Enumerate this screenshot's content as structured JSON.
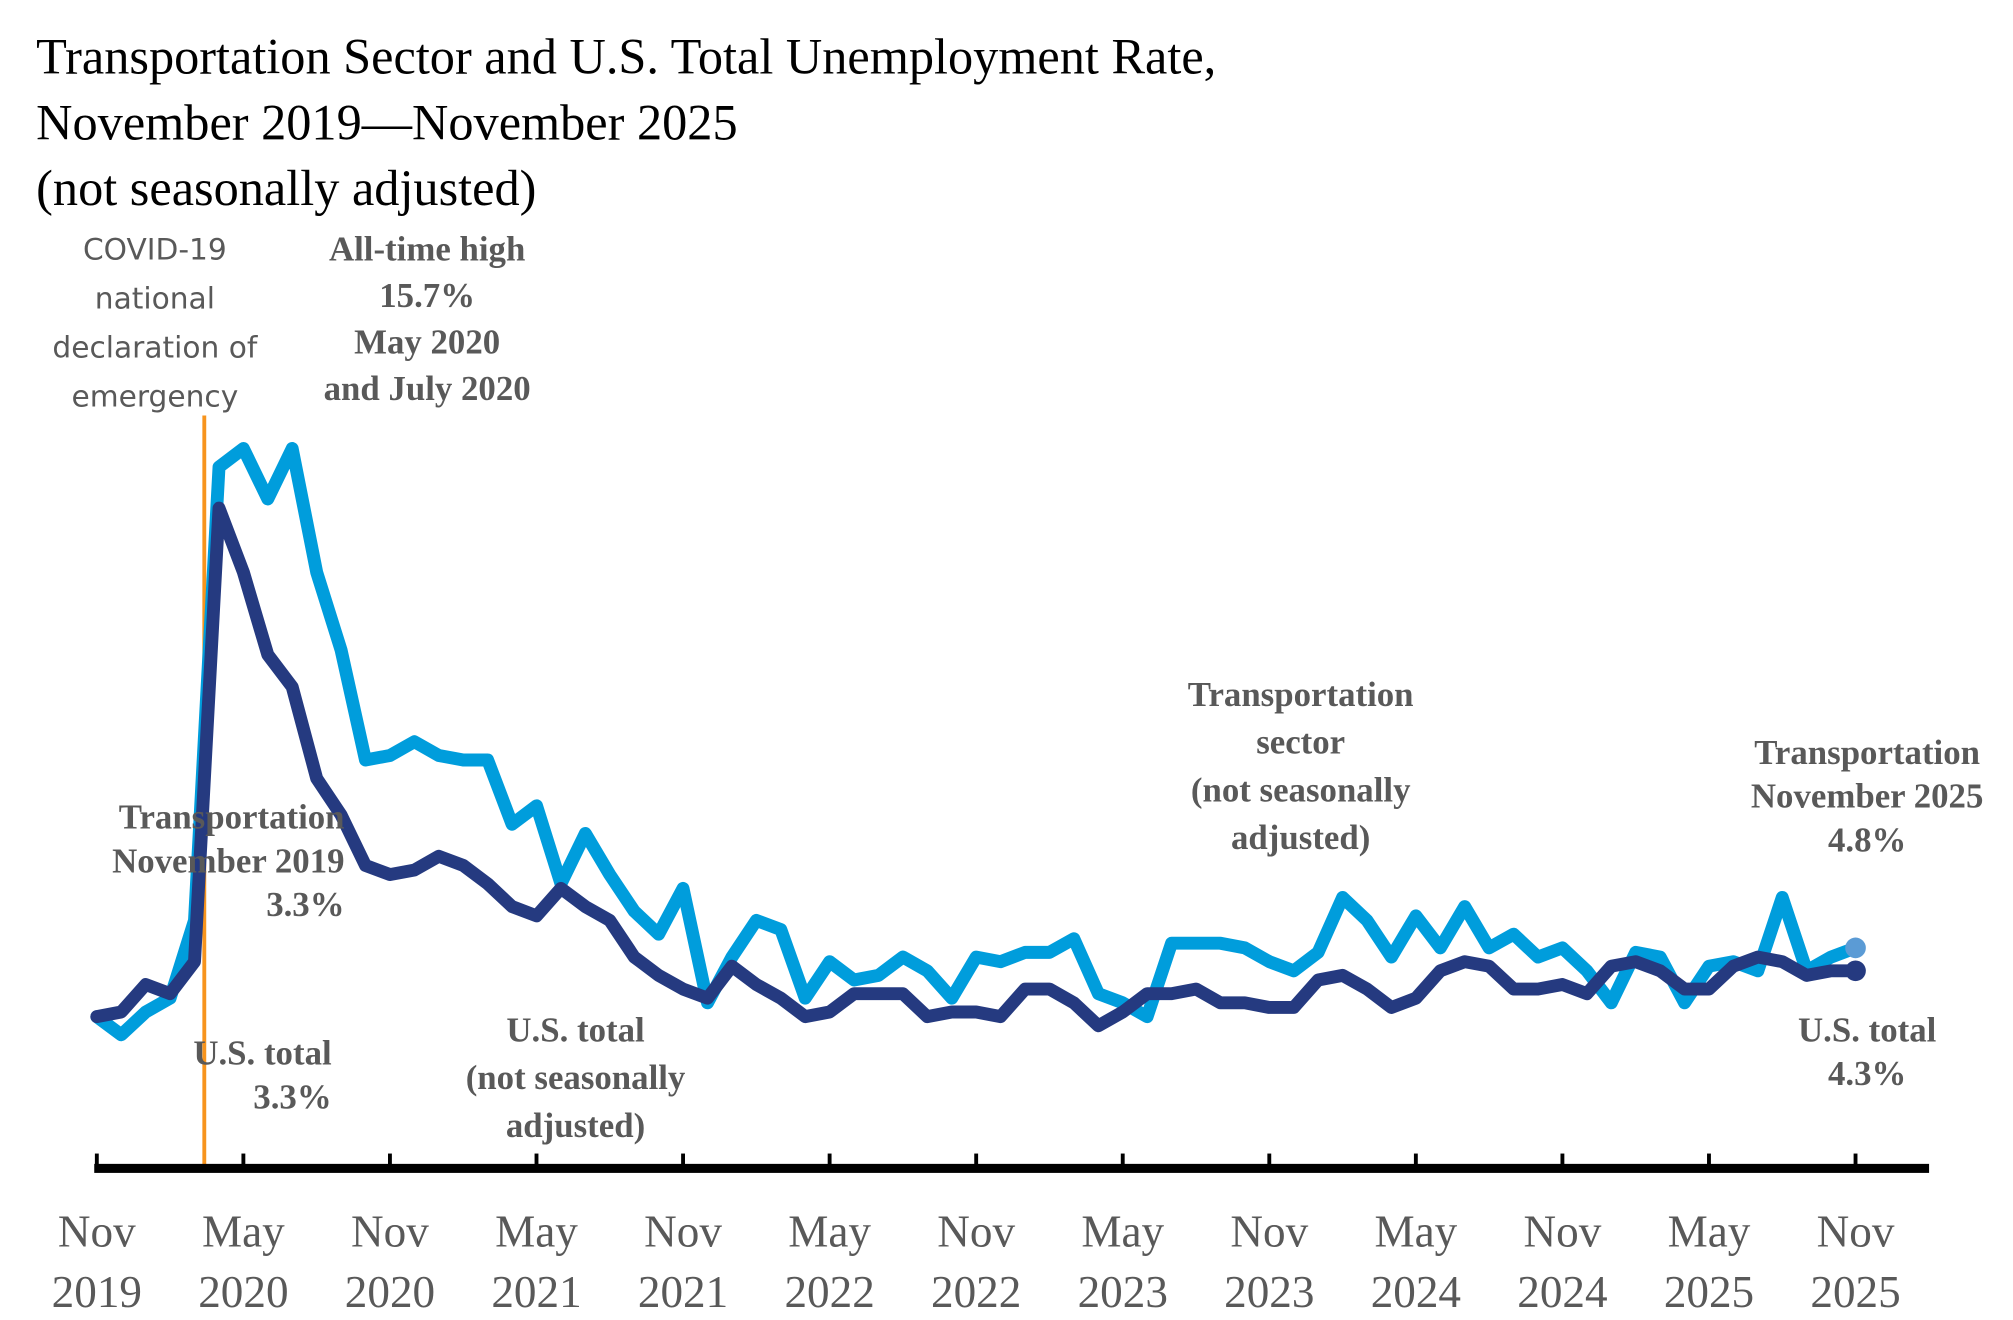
{
  "chart_data": {
    "type": "line",
    "title": [
      "Transportation Sector and U.S. Total Unemployment Rate,",
      "November 2019—November 2025",
      "(not seasonally adjusted)"
    ],
    "xlabel": "",
    "ylabel": "",
    "ylim": [
      0,
      16
    ],
    "grid": false,
    "x_start": "Nov 2019",
    "x_tick_labels": [
      [
        "Nov",
        "2019"
      ],
      [
        "May",
        "2020"
      ],
      [
        "Nov",
        "2020"
      ],
      [
        "May",
        "2021"
      ],
      [
        "Nov",
        "2021"
      ],
      [
        "May",
        "2022"
      ],
      [
        "Nov",
        "2022"
      ],
      [
        "May",
        "2023"
      ],
      [
        "Nov",
        "2023"
      ],
      [
        "May",
        "2024"
      ],
      [
        "Nov",
        "2024"
      ],
      [
        "May",
        "2025"
      ],
      [
        "Nov",
        "2025"
      ]
    ],
    "series": [
      {
        "key": "transportation",
        "color": "#009ddc",
        "values": [
          3.3,
          2.9,
          3.4,
          3.7,
          5.4,
          15.3,
          15.7,
          14.6,
          15.7,
          13.0,
          11.3,
          8.9,
          9.0,
          9.3,
          9.0,
          8.9,
          8.9,
          7.5,
          7.9,
          6.2,
          7.3,
          6.4,
          5.6,
          5.1,
          6.1,
          3.6,
          4.6,
          5.4,
          5.2,
          3.7,
          4.5,
          4.1,
          4.2,
          4.6,
          4.3,
          3.7,
          4.6,
          4.5,
          4.7,
          4.7,
          5.0,
          3.8,
          3.6,
          3.3,
          4.9,
          4.9,
          4.9,
          4.8,
          4.5,
          4.3,
          4.7,
          5.9,
          5.4,
          4.6,
          5.5,
          4.8,
          5.7,
          4.8,
          5.1,
          4.6,
          4.8,
          4.3,
          3.6,
          4.7,
          4.6,
          3.6,
          4.4,
          4.5,
          4.3,
          5.9,
          4.3,
          4.6,
          4.8
        ]
      },
      {
        "key": "us_total",
        "color": "#253a80",
        "values": [
          3.3,
          3.4,
          4.0,
          3.8,
          4.5,
          14.4,
          13.0,
          11.2,
          10.5,
          8.5,
          7.7,
          6.6,
          6.4,
          6.5,
          6.8,
          6.6,
          6.2,
          5.7,
          5.5,
          6.1,
          5.7,
          5.4,
          4.6,
          4.2,
          3.9,
          3.7,
          4.4,
          4.0,
          3.7,
          3.3,
          3.4,
          3.8,
          3.8,
          3.8,
          3.3,
          3.4,
          3.4,
          3.3,
          3.9,
          3.9,
          3.6,
          3.1,
          3.4,
          3.8,
          3.8,
          3.9,
          3.6,
          3.6,
          3.5,
          3.5,
          4.1,
          4.2,
          3.9,
          3.5,
          3.7,
          4.3,
          4.5,
          4.4,
          3.9,
          3.9,
          4.0,
          3.8,
          4.4,
          4.5,
          4.3,
          3.9,
          3.9,
          4.4,
          4.6,
          4.5,
          4.2,
          4.3,
          4.3
        ]
      }
    ],
    "event_line": {
      "month": "Mar 2020",
      "color": "#f7941d"
    },
    "annotations": {
      "covid": [
        "COVID-19",
        "national",
        "declaration of",
        "emergency"
      ],
      "high": [
        "All-time high",
        "15.7%",
        "May 2020",
        "and July 2020"
      ],
      "trans_start": [
        "Transportation",
        "November 2019",
        "3.3%"
      ],
      "us_start": [
        "U.S. total",
        "3.3%"
      ],
      "us_series": [
        "U.S. total",
        "(not seasonally",
        "adjusted)"
      ],
      "trans_series": [
        "Transportation",
        "sector",
        "(not seasonally",
        "adjusted)"
      ],
      "trans_end": [
        "Transportation",
        "November 2025",
        "4.8%"
      ],
      "us_end": [
        "U.S. total",
        "4.3%"
      ]
    },
    "end_marker_color": "#5b9bd5"
  }
}
